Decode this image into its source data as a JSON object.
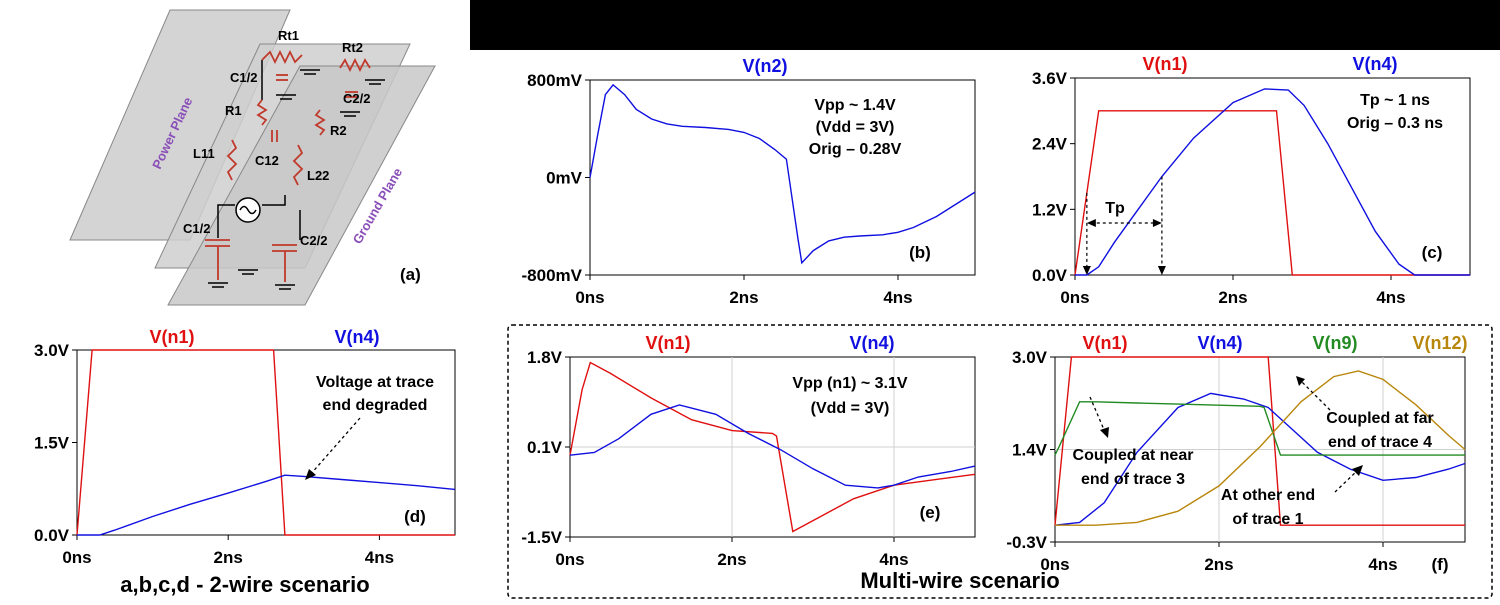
{
  "circuit": {
    "plane_labels": [
      "Power Plane",
      "Ground Plane"
    ],
    "component_labels": [
      "Rt1",
      "Rt2",
      "C1/2",
      "C2/2",
      "R1",
      "R2",
      "L11",
      "C12",
      "L22",
      "C1/2",
      "C2/2"
    ],
    "panel_label": "(a)"
  },
  "captions": {
    "two_wire": "a,b,c,d - 2-wire scenario",
    "multi_wire": "Multi-wire scenario"
  },
  "chart_data": [
    {
      "id": "b",
      "type": "line",
      "panel_label": "(b)",
      "xlim": [
        0,
        5
      ],
      "ylim": [
        -800,
        800
      ],
      "xticks": [
        "0ns",
        "2ns",
        "4ns"
      ],
      "yticks": [
        "800mV",
        "0mV",
        "-800mV"
      ],
      "grid": false,
      "annotations": [
        {
          "text": "Vpp ~ 1.4V",
          "color": "#000000"
        },
        {
          "text": "(Vdd = 3V)",
          "color": "#000000"
        },
        {
          "text": "Orig – 0.28V",
          "color": "#c00000"
        }
      ],
      "series": [
        {
          "name": "V(n2)",
          "color": "#1010e0",
          "x": [
            0,
            0.1,
            0.2,
            0.3,
            0.45,
            0.6,
            0.8,
            1.0,
            1.2,
            1.5,
            1.8,
            2.0,
            2.2,
            2.4,
            2.55,
            2.7,
            2.75,
            2.9,
            3.1,
            3.3,
            3.5,
            3.8,
            4.0,
            4.2,
            4.5,
            4.8,
            5.0
          ],
          "y": [
            0,
            350,
            680,
            760,
            680,
            560,
            480,
            440,
            420,
            410,
            395,
            370,
            320,
            230,
            150,
            -500,
            -700,
            -600,
            -520,
            -490,
            -480,
            -470,
            -450,
            -410,
            -320,
            -200,
            -120
          ]
        }
      ]
    },
    {
      "id": "c",
      "type": "line",
      "panel_label": "(c)",
      "xlim": [
        0,
        5
      ],
      "ylim": [
        0,
        3.6
      ],
      "xticks": [
        "0ns",
        "2ns",
        "4ns"
      ],
      "yticks": [
        "3.6V",
        "2.4V",
        "1.2V",
        "0.0V"
      ],
      "grid": false,
      "annotations": [
        {
          "text": "Tp ~ 1 ns",
          "color": "#000000"
        },
        {
          "text": "Orig – 0.3 ns",
          "color": "#c00000"
        },
        {
          "text": "Tp",
          "color": "#000000"
        }
      ],
      "series": [
        {
          "name": "V(n1)",
          "color": "#e01010",
          "x": [
            0,
            0.3,
            2.55,
            2.75,
            5.0
          ],
          "y": [
            0,
            3.0,
            3.0,
            0,
            0
          ]
        },
        {
          "name": "V(n4)",
          "color": "#1010e0",
          "x": [
            0,
            0.15,
            0.3,
            0.5,
            0.8,
            1.1,
            1.5,
            2.0,
            2.4,
            2.7,
            2.9,
            3.2,
            3.5,
            3.8,
            4.1,
            4.3,
            5.0
          ],
          "y": [
            0,
            0,
            0.15,
            0.6,
            1.2,
            1.8,
            2.5,
            3.15,
            3.4,
            3.38,
            3.1,
            2.4,
            1.6,
            0.8,
            0.2,
            0,
            0
          ]
        }
      ]
    },
    {
      "id": "d",
      "type": "line",
      "panel_label": "(d)",
      "xlim": [
        0,
        5
      ],
      "ylim": [
        0,
        3.0
      ],
      "xticks": [
        "0ns",
        "2ns",
        "4ns"
      ],
      "yticks": [
        "3.0V",
        "1.5V",
        "0.0V"
      ],
      "grid": false,
      "annotations": [
        {
          "text": "Voltage at trace",
          "color": "#000000"
        },
        {
          "text": "end degraded",
          "color": "#000000"
        }
      ],
      "series": [
        {
          "name": "V(n1)",
          "color": "#e01010",
          "x": [
            0,
            0.2,
            0.25,
            2.55,
            2.6,
            2.75,
            5.0
          ],
          "y": [
            0,
            3.0,
            3.0,
            3.0,
            3.0,
            0,
            0
          ]
        },
        {
          "name": "V(n4)",
          "color": "#1010e0",
          "x": [
            0,
            0.3,
            0.5,
            1.0,
            1.5,
            2.0,
            2.5,
            2.75,
            3.0,
            3.5,
            4.0,
            4.5,
            5.0
          ],
          "y": [
            0,
            0,
            0.08,
            0.3,
            0.5,
            0.68,
            0.87,
            0.97,
            0.95,
            0.9,
            0.85,
            0.8,
            0.74
          ]
        }
      ]
    },
    {
      "id": "e",
      "type": "line",
      "panel_label": "(e)",
      "xlim": [
        0,
        5
      ],
      "ylim": [
        -1.5,
        1.8
      ],
      "xticks": [
        "0ns",
        "2ns",
        "4ns"
      ],
      "yticks": [
        "1.8V",
        "0.1V",
        "-1.5V"
      ],
      "grid": true,
      "annotations": [
        {
          "text": "Vpp (n1) ~ 3.1V",
          "color": "#000000"
        },
        {
          "text": "(Vdd = 3V)",
          "color": "#000000"
        }
      ],
      "series": [
        {
          "name": "V(n1)",
          "color": "#e01010",
          "x": [
            0,
            0.15,
            0.25,
            0.5,
            1.0,
            1.5,
            2.0,
            2.5,
            2.55,
            2.75,
            3.0,
            3.5,
            4.0,
            4.5,
            5.0
          ],
          "y": [
            0,
            1.2,
            1.7,
            1.5,
            1.05,
            0.65,
            0.45,
            0.4,
            0.35,
            -1.4,
            -1.2,
            -0.8,
            -0.55,
            -0.45,
            -0.35
          ]
        },
        {
          "name": "V(n4)",
          "color": "#1010e0",
          "x": [
            0,
            0.3,
            0.6,
            1.0,
            1.35,
            1.8,
            2.2,
            2.6,
            3.0,
            3.4,
            3.8,
            4.0,
            4.3,
            4.7,
            5.0
          ],
          "y": [
            0,
            0.05,
            0.3,
            0.75,
            0.92,
            0.75,
            0.4,
            0.1,
            -0.25,
            -0.55,
            -0.6,
            -0.55,
            -0.4,
            -0.3,
            -0.2
          ]
        }
      ]
    },
    {
      "id": "f",
      "type": "line",
      "panel_label": "(f)",
      "xlim": [
        0,
        5
      ],
      "ylim": [
        -0.3,
        3.0
      ],
      "xticks": [
        "0ns",
        "2ns",
        "4ns"
      ],
      "yticks": [
        "3.0V",
        "1.4V",
        "-0.3V"
      ],
      "grid": true,
      "annotations": [
        {
          "text": "Coupled at near",
          "color": "#000000"
        },
        {
          "text": "end of trace 3",
          "color": "#000000"
        },
        {
          "text": "Coupled at far",
          "color": "#000000"
        },
        {
          "text": "end of trace 4",
          "color": "#000000"
        },
        {
          "text": "At other end",
          "color": "#000000"
        },
        {
          "text": "of trace 1",
          "color": "#000000"
        }
      ],
      "series": [
        {
          "name": "V(n1)",
          "color": "#e01010",
          "x": [
            0,
            0.2,
            0.25,
            2.55,
            2.6,
            2.75,
            5.0
          ],
          "y": [
            0,
            3.0,
            3.0,
            3.0,
            3.0,
            0,
            0
          ]
        },
        {
          "name": "V(n4)",
          "color": "#1010e0",
          "x": [
            0,
            0.3,
            0.6,
            1.0,
            1.5,
            1.9,
            2.3,
            2.6,
            2.9,
            3.2,
            3.6,
            4.0,
            4.4,
            4.8,
            5.0
          ],
          "y": [
            0,
            0.05,
            0.4,
            1.3,
            2.1,
            2.35,
            2.25,
            2.1,
            1.7,
            1.3,
            1.0,
            0.8,
            0.85,
            1.0,
            1.1
          ]
        },
        {
          "name": "V(n9)",
          "color": "#228b22",
          "x": [
            0,
            0.05,
            0.3,
            0.5,
            1.0,
            1.5,
            2.0,
            2.5,
            2.55,
            2.75,
            3.0,
            4.0,
            5.0
          ],
          "y": [
            1.25,
            1.4,
            2.2,
            2.2,
            2.18,
            2.16,
            2.14,
            2.12,
            2.1,
            1.25,
            1.25,
            1.25,
            1.25
          ]
        },
        {
          "name": "V(n12)",
          "color": "#b8860b",
          "x": [
            0,
            0.5,
            1.0,
            1.5,
            2.0,
            2.5,
            3.0,
            3.4,
            3.7,
            4.0,
            4.4,
            4.8,
            5.0
          ],
          "y": [
            0,
            0,
            0.05,
            0.25,
            0.7,
            1.4,
            2.2,
            2.65,
            2.75,
            2.6,
            2.15,
            1.6,
            1.35
          ]
        }
      ]
    }
  ]
}
